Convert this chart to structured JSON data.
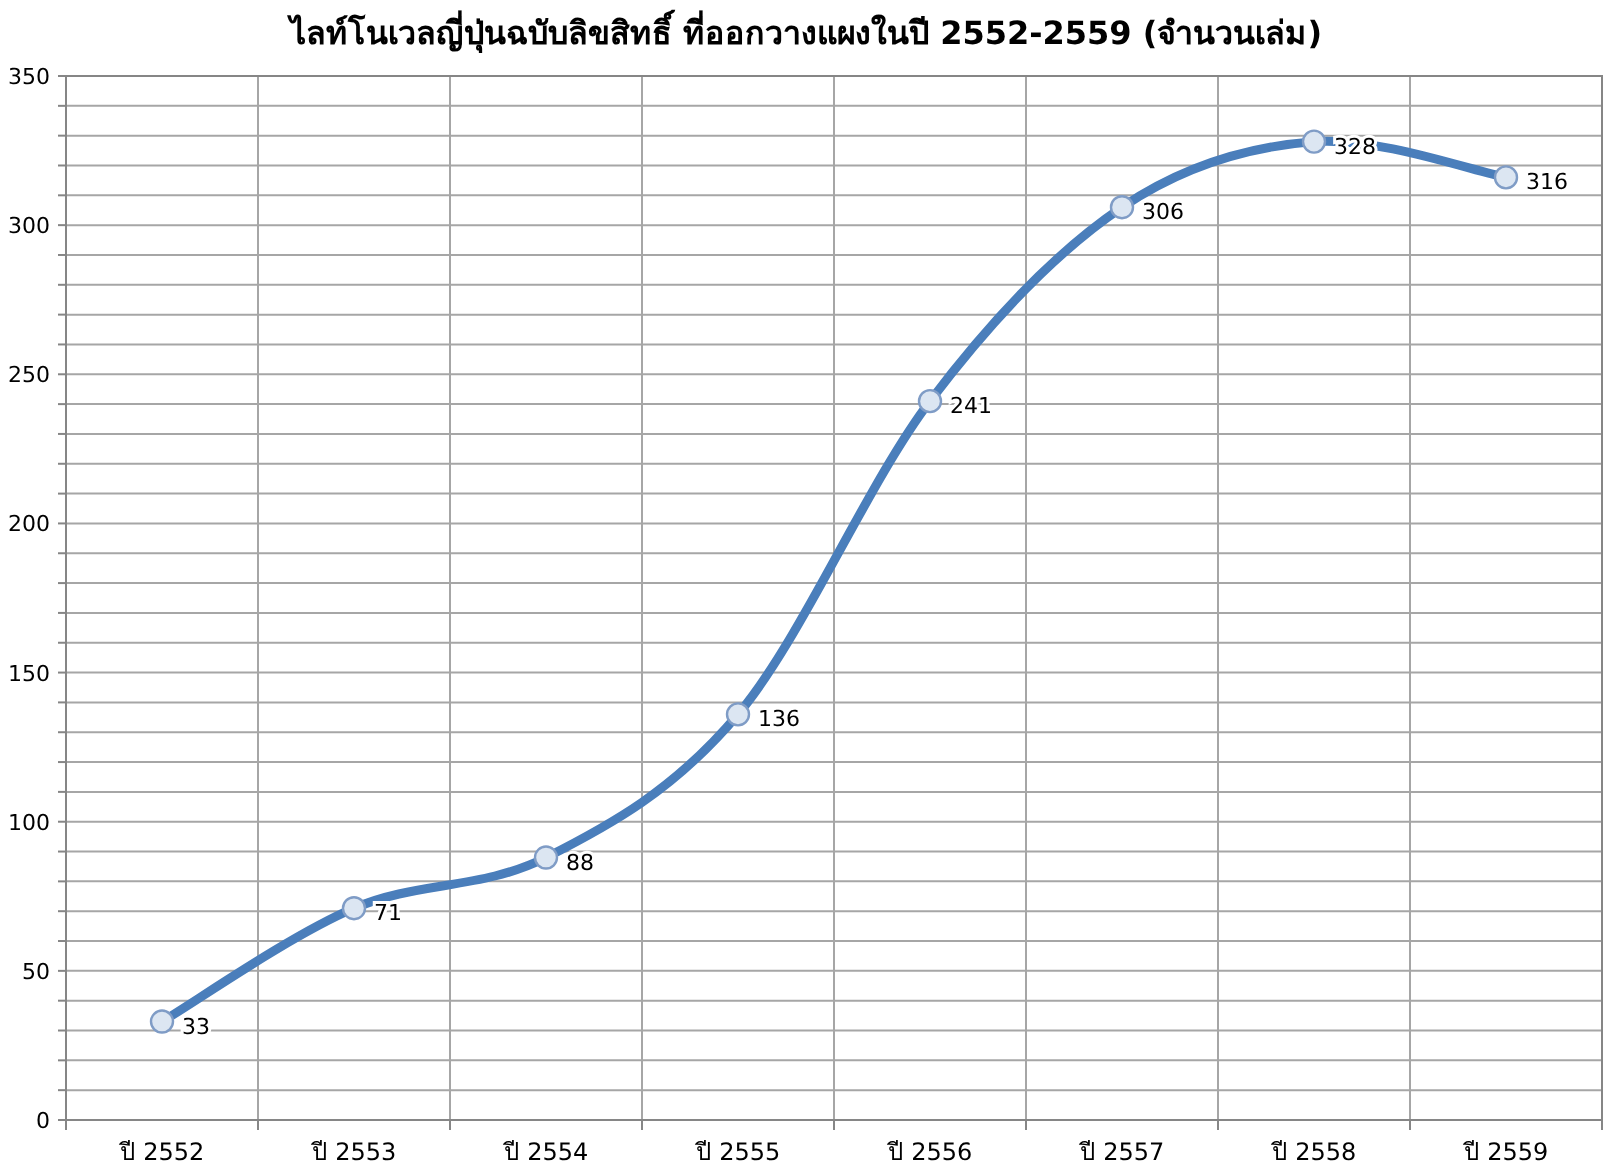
{
  "chart_data": {
    "type": "line",
    "title": "ไลท์โนเวลญี่ปุ่นฉบับลิขสิทธิ์ ที่ออกวางแผงในปี 2552-2559 (จำนวนเล่ม)",
    "categories": [
      "ปี 2552",
      "ปี 2553",
      "ปี 2554",
      "ปี 2555",
      "ปี 2556",
      "ปี 2557",
      "ปี 2558",
      "ปี 2559"
    ],
    "series": [
      {
        "color": "#4a7ebb",
        "values": [
          33,
          71,
          88,
          136,
          241,
          306,
          328,
          316
        ]
      }
    ],
    "ylim": [
      0,
      350
    ],
    "yticks": [
      0,
      {
        "value": 10,
        "label": null
      },
      {
        "value": 20,
        "label": null
      },
      {
        "value": 30,
        "label": null
      },
      {
        "value": 40,
        "label": null
      },
      50,
      {
        "value": 60,
        "label": null
      },
      {
        "value": 70,
        "label": null
      },
      {
        "value": 80,
        "label": null
      },
      {
        "value": 90,
        "label": null
      },
      100,
      {
        "value": 110,
        "label": null
      },
      {
        "value": 120,
        "label": null
      },
      {
        "value": 130,
        "label": null
      },
      {
        "value": 140,
        "label": null
      },
      150,
      {
        "value": 160,
        "label": null
      },
      {
        "value": 170,
        "label": null
      },
      {
        "value": 180,
        "label": null
      },
      {
        "value": 190,
        "label": null
      },
      200,
      {
        "value": 210,
        "label": null
      },
      {
        "value": 220,
        "label": null
      },
      {
        "value": 230,
        "label": null
      },
      {
        "value": 240,
        "label": null
      },
      250,
      {
        "value": 260,
        "label": null
      },
      {
        "value": 270,
        "label": null
      },
      {
        "value": 280,
        "label": null
      },
      {
        "value": 290,
        "label": null
      },
      300,
      {
        "value": 310,
        "label": null
      },
      {
        "value": 320,
        "label": null
      },
      {
        "value": 330,
        "label": null
      },
      {
        "value": 340,
        "label": null
      },
      350
    ],
    "grid": true,
    "marker": "circle",
    "line_style": "solid",
    "data_labels": true
  }
}
